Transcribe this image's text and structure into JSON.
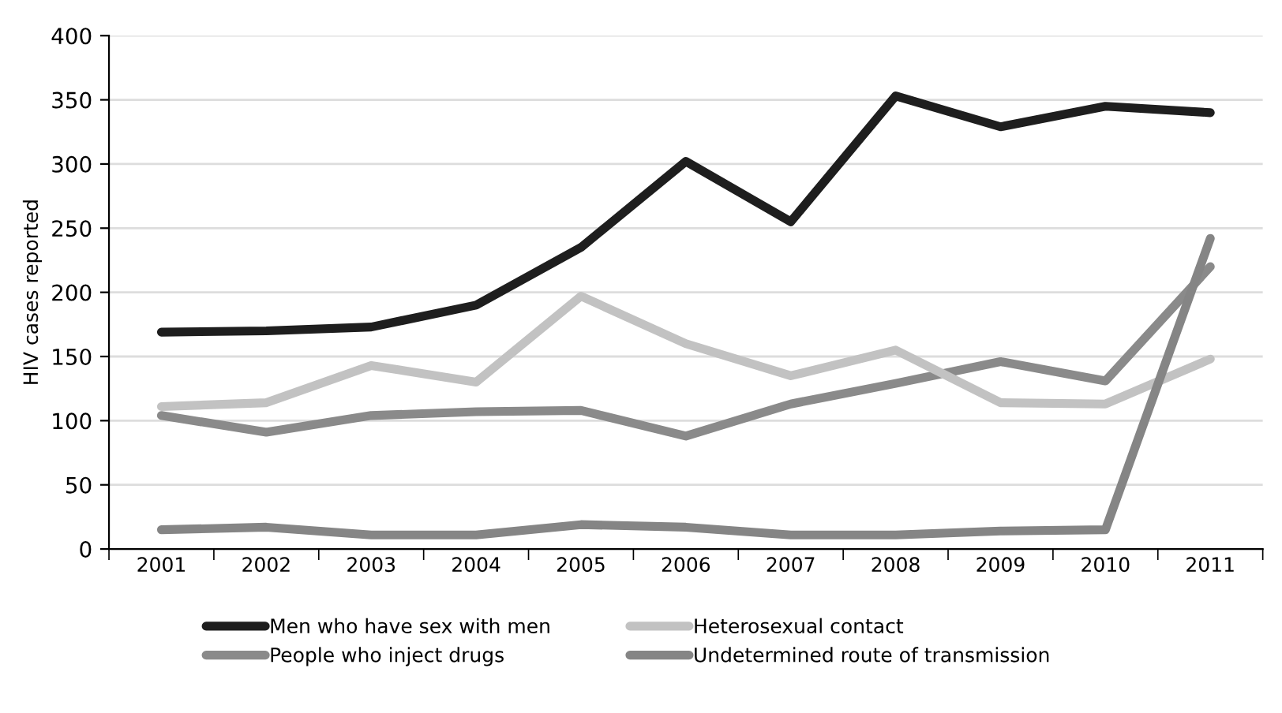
{
  "chart_data": {
    "type": "line",
    "ylabel": "HIV cases reported",
    "categories": [
      "2001",
      "2002",
      "2003",
      "2004",
      "2005",
      "2006",
      "2007",
      "2008",
      "2009",
      "2010",
      "2011"
    ],
    "series": [
      {
        "name": "Men who have sex with men",
        "color": "#1e1e1e",
        "values": [
          169,
          170,
          173,
          190,
          235,
          302,
          255,
          353,
          329,
          345,
          340
        ]
      },
      {
        "name": "People who inject drugs",
        "color": "#8a8a8a",
        "values": [
          104,
          91,
          104,
          107,
          108,
          88,
          113,
          129,
          146,
          131,
          220
        ]
      },
      {
        "name": "Heterosexual contact",
        "color": "#c2c2c2",
        "values": [
          111,
          114,
          143,
          130,
          197,
          160,
          135,
          155,
          114,
          113,
          148
        ]
      },
      {
        "name": "Undetermined route of transmission",
        "color": "#858585",
        "values": [
          15,
          17,
          11,
          11,
          19,
          17,
          11,
          11,
          14,
          15,
          242
        ]
      }
    ],
    "ylim": [
      0,
      400
    ],
    "yticks": [
      0,
      50,
      100,
      150,
      200,
      250,
      300,
      350,
      400
    ],
    "grid": "y",
    "legend": "bottom",
    "marker": "none",
    "line_style": "solid"
  }
}
